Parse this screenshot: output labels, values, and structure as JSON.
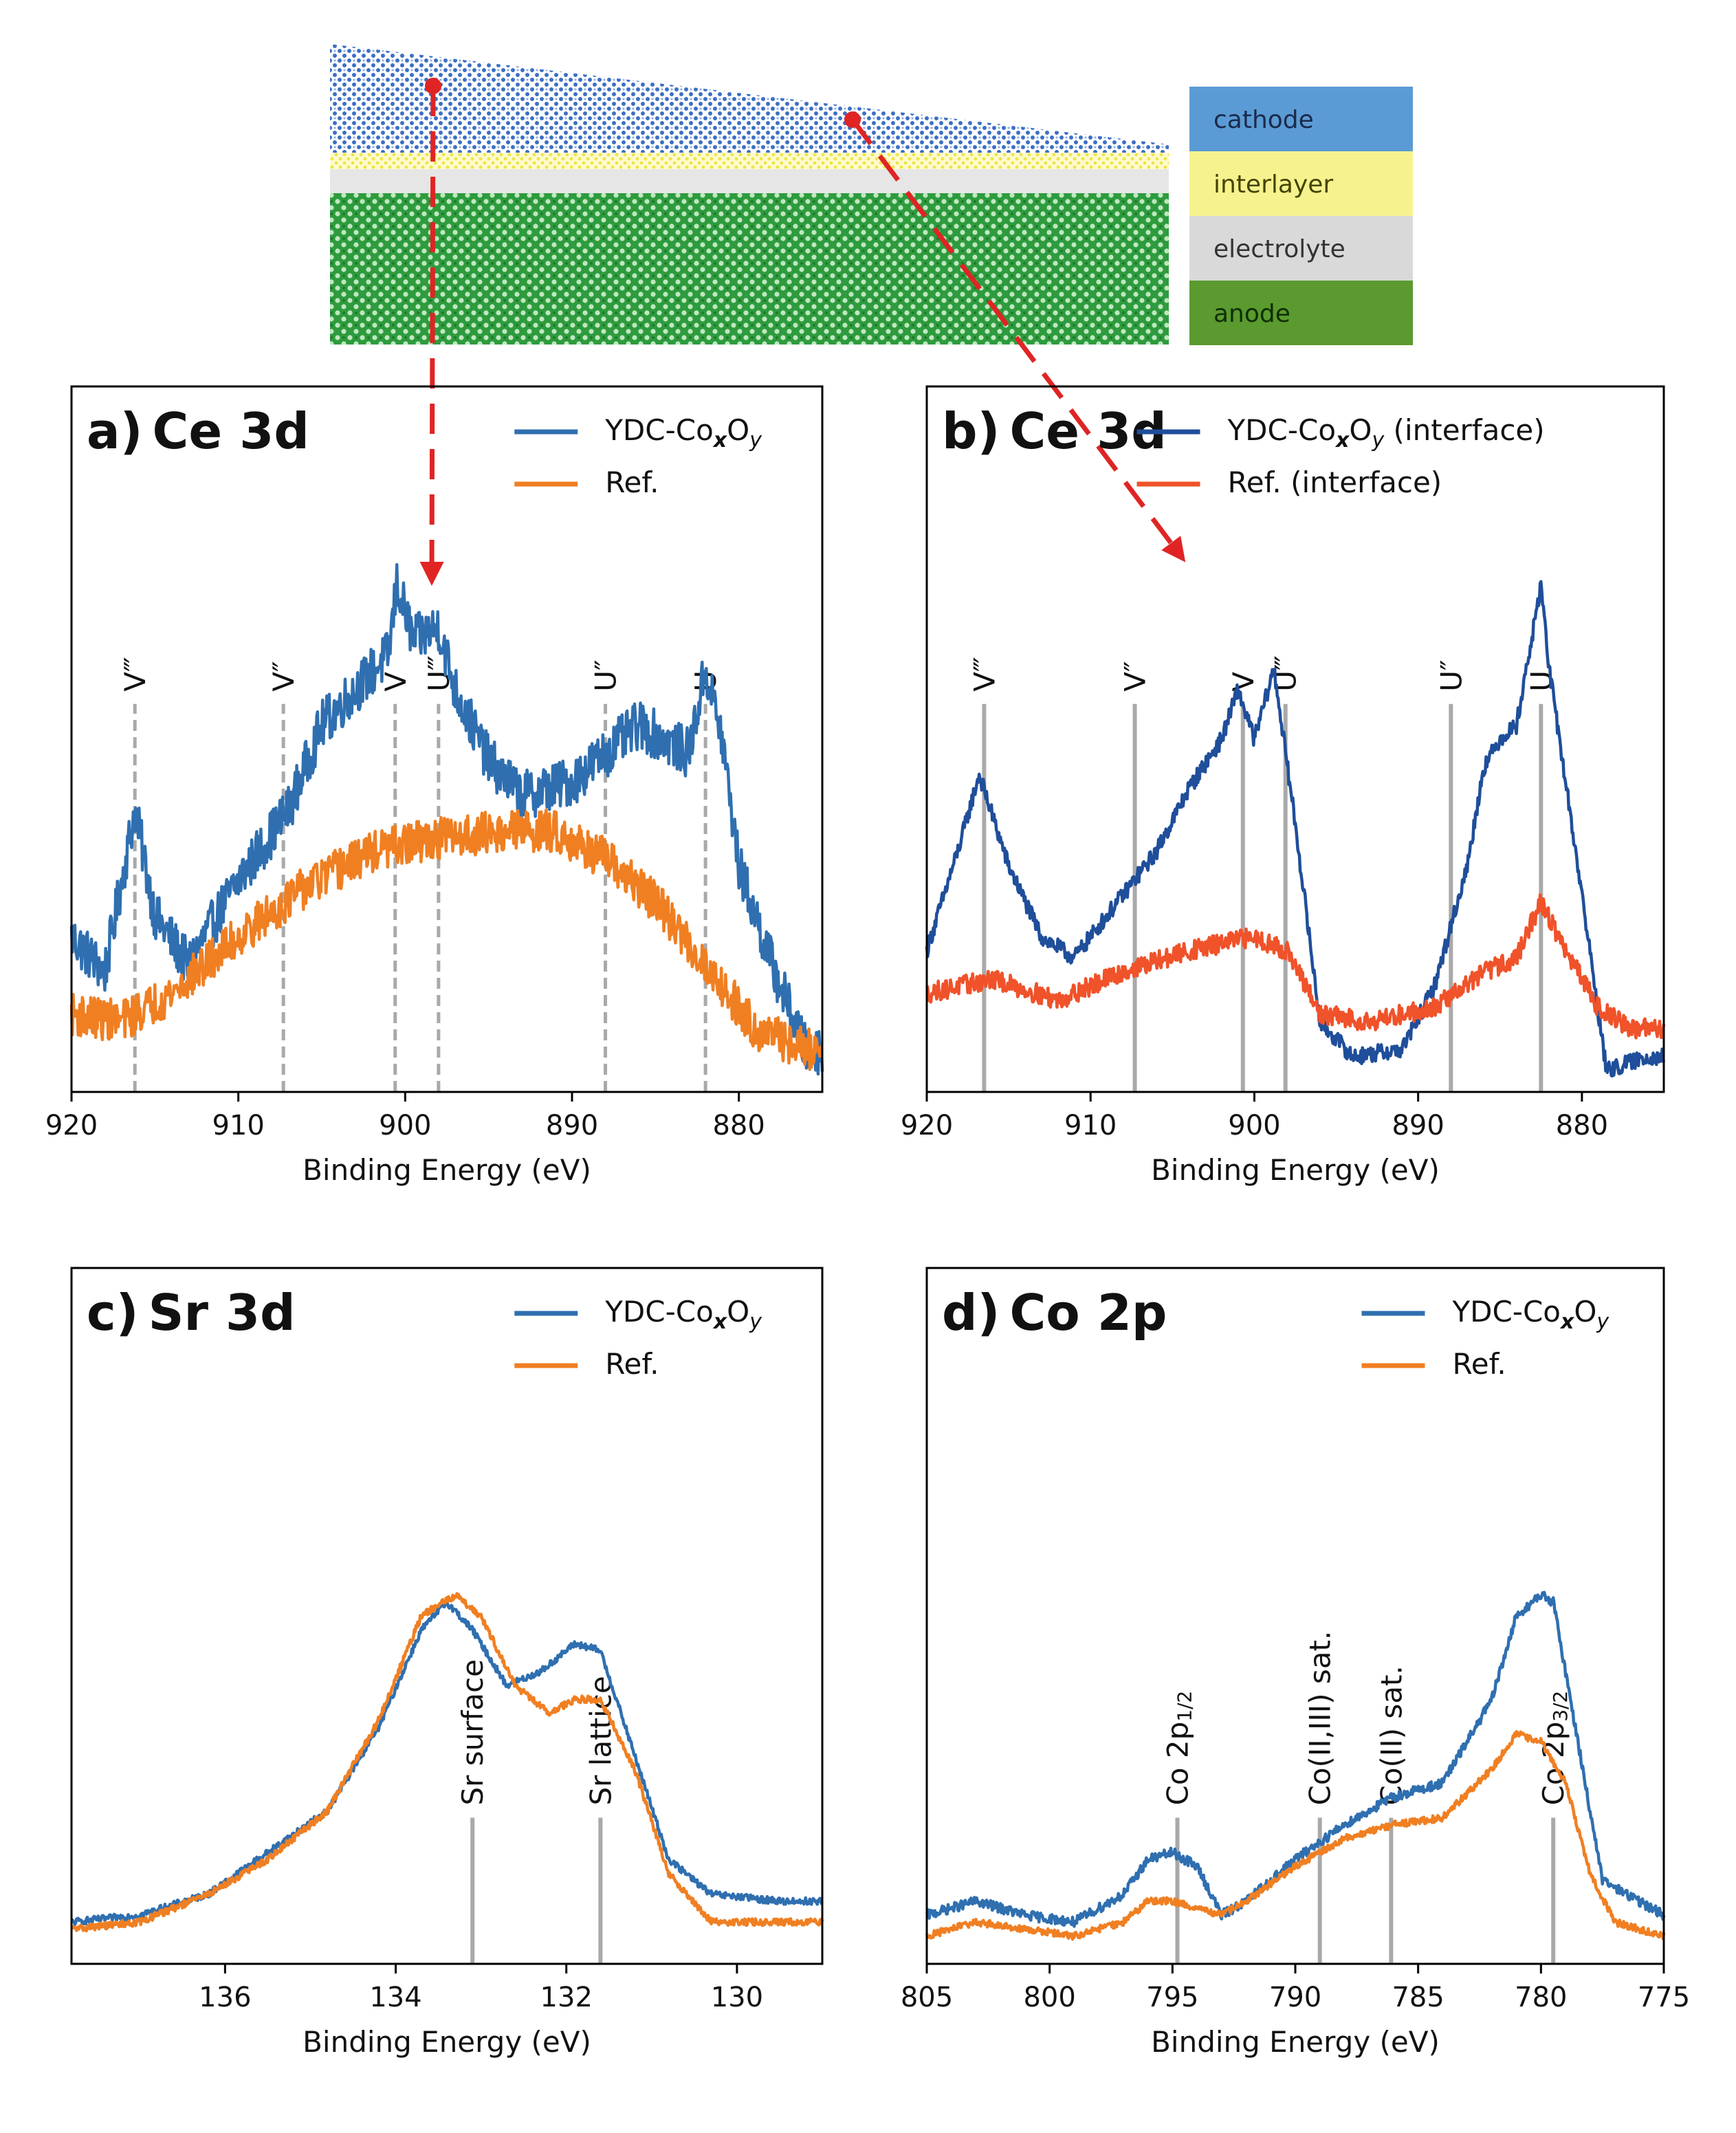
{
  "colors": {
    "ydc": "#2f6fb0",
    "ydc_interface": "#1f4e9a",
    "ref": "#f07f22",
    "ref_interface": "#f0522a",
    "marker": "#a9a9a9",
    "arrow": "#e02424"
  },
  "schematic": {
    "legend": [
      {
        "label": "cathode",
        "color": "#5b9bd5"
      },
      {
        "label": "interlayer",
        "color": "#f6f38f"
      },
      {
        "label": "electrolyte",
        "color": "#d9d9d9"
      },
      {
        "label": "anode",
        "color": "#5a9a2f"
      }
    ]
  },
  "chart_data": [
    {
      "id": "a",
      "type": "line",
      "panel_label": "a)",
      "title": "Ce 3d",
      "xlabel": "Binding Energy (eV)",
      "ylabel": "",
      "xlim": [
        920,
        875
      ],
      "ylim": [
        0,
        1
      ],
      "xticks": [
        "920",
        "910",
        "900",
        "890",
        "880"
      ],
      "legend_position": "top-right",
      "series": [
        {
          "name": "YDC-CoxOy",
          "label_main": "YDC-Co",
          "sub1": "x",
          "mid": "O",
          "sub2": "y",
          "suffix": "",
          "color": "#2f6fb0",
          "points": [
            [
              920,
              0.22
            ],
            [
              918,
              0.17
            ],
            [
              916.2,
              0.4
            ],
            [
              915,
              0.25
            ],
            [
              913,
              0.18
            ],
            [
              910,
              0.3
            ],
            [
              907,
              0.4
            ],
            [
              905,
              0.52
            ],
            [
              903,
              0.57
            ],
            [
              901,
              0.62
            ],
            [
              900.5,
              0.72
            ],
            [
              899.5,
              0.64
            ],
            [
              898,
              0.66
            ],
            [
              897,
              0.57
            ],
            [
              895,
              0.47
            ],
            [
              893,
              0.42
            ],
            [
              890,
              0.44
            ],
            [
              888,
              0.48
            ],
            [
              886,
              0.52
            ],
            [
              884.5,
              0.5
            ],
            [
              883,
              0.48
            ],
            [
              882,
              0.6
            ],
            [
              881,
              0.5
            ],
            [
              880,
              0.32
            ],
            [
              878,
              0.18
            ],
            [
              876,
              0.06
            ],
            [
              875,
              0.06
            ]
          ],
          "noise": 0.035
        },
        {
          "name": "Ref.",
          "label_main": "Ref.",
          "sub1": "",
          "mid": "",
          "sub2": "",
          "suffix": "",
          "color": "#f07f22",
          "points": [
            [
              920,
              0.11
            ],
            [
              917,
              0.1
            ],
            [
              914,
              0.14
            ],
            [
              910,
              0.22
            ],
            [
              906,
              0.29
            ],
            [
              902,
              0.34
            ],
            [
              898,
              0.36
            ],
            [
              894,
              0.37
            ],
            [
              891,
              0.37
            ],
            [
              888,
              0.33
            ],
            [
              885,
              0.27
            ],
            [
              882,
              0.18
            ],
            [
              879,
              0.09
            ],
            [
              876,
              0.06
            ],
            [
              875,
              0.06
            ]
          ],
          "noise": 0.03
        }
      ],
      "markers": [
        {
          "label": "V‴",
          "x": 916.2
        },
        {
          "label": "V″",
          "x": 907.3
        },
        {
          "label": "V",
          "x": 900.6
        },
        {
          "label": "U‴",
          "x": 898.0
        },
        {
          "label": "U″",
          "x": 888.0
        },
        {
          "label": "U",
          "x": 882.0
        }
      ],
      "marker_style": "dashed"
    },
    {
      "id": "b",
      "type": "line",
      "panel_label": "b)",
      "title": "Ce 3d",
      "xlabel": "Binding Energy (eV)",
      "ylabel": "",
      "xlim": [
        920,
        875
      ],
      "ylim": [
        0,
        1
      ],
      "xticks": [
        "920",
        "910",
        "900",
        "890",
        "880"
      ],
      "legend_position": "top-right",
      "series": [
        {
          "name": "YDC-CoxOy (interface)",
          "label_main": "YDC-Co",
          "sub1": "x",
          "mid": "O",
          "sub2": "y",
          "suffix": " (interface)",
          "color": "#1f4e9a",
          "points": [
            [
              920,
              0.2
            ],
            [
              918,
              0.35
            ],
            [
              916.8,
              0.45
            ],
            [
              915,
              0.32
            ],
            [
              913,
              0.22
            ],
            [
              911,
              0.19
            ],
            [
              909,
              0.25
            ],
            [
              906,
              0.34
            ],
            [
              904,
              0.43
            ],
            [
              902,
              0.5
            ],
            [
              901,
              0.57
            ],
            [
              900,
              0.5
            ],
            [
              898.8,
              0.6
            ],
            [
              897.5,
              0.38
            ],
            [
              896,
              0.1
            ],
            [
              894,
              0.05
            ],
            [
              891,
              0.06
            ],
            [
              889,
              0.15
            ],
            [
              887,
              0.32
            ],
            [
              886,
              0.46
            ],
            [
              885,
              0.5
            ],
            [
              884,
              0.52
            ],
            [
              883,
              0.65
            ],
            [
              882.5,
              0.72
            ],
            [
              882,
              0.6
            ],
            [
              880,
              0.28
            ],
            [
              878.5,
              0.03
            ],
            [
              876,
              0.05
            ],
            [
              875,
              0.05
            ]
          ],
          "noise": 0.012
        },
        {
          "name": "Ref. (interface)",
          "label_main": "Ref. (interface)",
          "sub1": "",
          "mid": "",
          "sub2": "",
          "suffix": "",
          "color": "#f0522a",
          "points": [
            [
              920,
              0.14
            ],
            [
              916,
              0.16
            ],
            [
              912,
              0.13
            ],
            [
              908,
              0.17
            ],
            [
              904,
              0.2
            ],
            [
              900,
              0.22
            ],
            [
              898,
              0.2
            ],
            [
              896,
              0.11
            ],
            [
              893,
              0.1
            ],
            [
              889,
              0.12
            ],
            [
              886,
              0.17
            ],
            [
              884,
              0.19
            ],
            [
              882.5,
              0.27
            ],
            [
              881,
              0.2
            ],
            [
              879,
              0.12
            ],
            [
              877,
              0.09
            ],
            [
              875,
              0.09
            ]
          ],
          "noise": 0.014
        }
      ],
      "markers": [
        {
          "label": "V‴",
          "x": 916.5
        },
        {
          "label": "V″",
          "x": 907.3
        },
        {
          "label": "V",
          "x": 900.7
        },
        {
          "label": "U‴",
          "x": 898.1
        },
        {
          "label": "U″",
          "x": 888.0
        },
        {
          "label": "U",
          "x": 882.5
        }
      ],
      "marker_style": "solid"
    },
    {
      "id": "c",
      "type": "line",
      "panel_label": "c)",
      "title": "Sr 3d",
      "xlabel": "Binding Energy (eV)",
      "ylabel": "",
      "xlim": [
        137.8,
        129.0
      ],
      "ylim": [
        0,
        1
      ],
      "xticks": [
        "136",
        "134",
        "132",
        "130"
      ],
      "legend_position": "top-right",
      "series": [
        {
          "name": "YDC-CoxOy",
          "label_main": "YDC-Co",
          "sub1": "x",
          "mid": "O",
          "sub2": "y",
          "suffix": "",
          "color": "#2f6fb0",
          "points": [
            [
              137.8,
              0.06
            ],
            [
              137,
              0.07
            ],
            [
              136.2,
              0.1
            ],
            [
              135.5,
              0.16
            ],
            [
              134.8,
              0.22
            ],
            [
              134.2,
              0.34
            ],
            [
              133.7,
              0.48
            ],
            [
              133.4,
              0.52
            ],
            [
              133.1,
              0.48
            ],
            [
              132.7,
              0.4
            ],
            [
              132.3,
              0.42
            ],
            [
              131.9,
              0.46
            ],
            [
              131.6,
              0.45
            ],
            [
              131.2,
              0.3
            ],
            [
              130.8,
              0.15
            ],
            [
              130.3,
              0.1
            ],
            [
              129.5,
              0.09
            ],
            [
              129,
              0.09
            ]
          ],
          "noise": 0.005
        },
        {
          "name": "Ref.",
          "label_main": "Ref.",
          "sub1": "",
          "mid": "",
          "sub2": "",
          "suffix": "",
          "color": "#f07f22",
          "points": [
            [
              137.8,
              0.05
            ],
            [
              137,
              0.06
            ],
            [
              136.2,
              0.1
            ],
            [
              135.5,
              0.15
            ],
            [
              134.8,
              0.22
            ],
            [
              134.2,
              0.35
            ],
            [
              133.7,
              0.5
            ],
            [
              133.3,
              0.53
            ],
            [
              133.0,
              0.5
            ],
            [
              132.6,
              0.4
            ],
            [
              132.2,
              0.36
            ],
            [
              131.9,
              0.38
            ],
            [
              131.6,
              0.38
            ],
            [
              131.2,
              0.28
            ],
            [
              130.8,
              0.13
            ],
            [
              130.3,
              0.06
            ],
            [
              129.5,
              0.06
            ],
            [
              129,
              0.06
            ]
          ],
          "noise": 0.005
        }
      ],
      "markers": [
        {
          "label": "Sr surface",
          "x": 133.1
        },
        {
          "label": "Sr lattice",
          "x": 131.6
        }
      ],
      "marker_style": "solid"
    },
    {
      "id": "d",
      "type": "line",
      "panel_label": "d)",
      "title": "Co 2p",
      "xlabel": "Binding Energy (eV)",
      "ylabel": "",
      "xlim": [
        805,
        775
      ],
      "ylim": [
        0,
        1
      ],
      "xticks": [
        "805",
        "800",
        "795",
        "790",
        "785",
        "780",
        "775"
      ],
      "legend_position": "top-right",
      "series": [
        {
          "name": "YDC-CoxOy",
          "label_main": "YDC-Co",
          "sub1": "x",
          "mid": "O",
          "sub2": "y",
          "suffix": "",
          "color": "#2f6fb0",
          "points": [
            [
              805,
              0.07
            ],
            [
              803,
              0.09
            ],
            [
              801,
              0.07
            ],
            [
              799,
              0.06
            ],
            [
              797,
              0.1
            ],
            [
              796,
              0.15
            ],
            [
              795,
              0.16
            ],
            [
              794,
              0.14
            ],
            [
              793,
              0.07
            ],
            [
              792,
              0.09
            ],
            [
              790,
              0.15
            ],
            [
              788,
              0.2
            ],
            [
              786,
              0.24
            ],
            [
              784,
              0.26
            ],
            [
              782,
              0.38
            ],
            [
              781,
              0.5
            ],
            [
              780,
              0.53
            ],
            [
              779.5,
              0.52
            ],
            [
              778.5,
              0.32
            ],
            [
              777.5,
              0.12
            ],
            [
              776,
              0.09
            ],
            [
              775,
              0.07
            ]
          ],
          "noise": 0.007
        },
        {
          "name": "Ref.",
          "label_main": "Ref.",
          "sub1": "",
          "mid": "",
          "sub2": "",
          "suffix": "",
          "color": "#f07f22",
          "points": [
            [
              805,
              0.04
            ],
            [
              803,
              0.06
            ],
            [
              801,
              0.05
            ],
            [
              799,
              0.04
            ],
            [
              797,
              0.06
            ],
            [
              796,
              0.09
            ],
            [
              795,
              0.09
            ],
            [
              794,
              0.08
            ],
            [
              793,
              0.07
            ],
            [
              792,
              0.09
            ],
            [
              790,
              0.14
            ],
            [
              788,
              0.18
            ],
            [
              786,
              0.2
            ],
            [
              784,
              0.21
            ],
            [
              782,
              0.28
            ],
            [
              781,
              0.33
            ],
            [
              780,
              0.32
            ],
            [
              779,
              0.26
            ],
            [
              778,
              0.13
            ],
            [
              777,
              0.06
            ],
            [
              776,
              0.05
            ],
            [
              775,
              0.04
            ]
          ],
          "noise": 0.005
        }
      ],
      "markers": [
        {
          "label": "Co 2p",
          "sub": "1/2",
          "x": 794.8
        },
        {
          "label": "Co(II,III) sat.",
          "sub": "",
          "x": 789.0
        },
        {
          "label": "Co(II) sat.",
          "sub": "",
          "x": 786.1
        },
        {
          "label": "Co 2p",
          "sub": "3/2",
          "x": 779.5
        }
      ],
      "marker_style": "solid"
    }
  ]
}
